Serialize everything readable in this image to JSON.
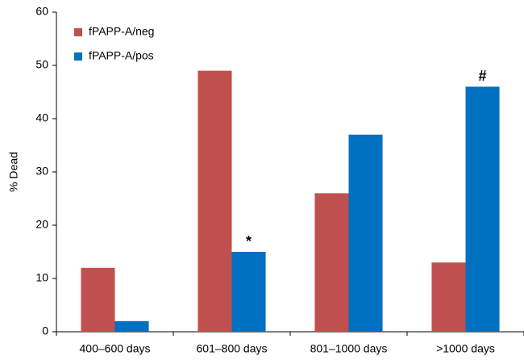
{
  "chart_data": {
    "type": "bar",
    "y_label": "% Dead",
    "categories": [
      "400–600 days",
      "601–800 days",
      "801–1000 days",
      ">1000 days"
    ],
    "series": [
      {
        "name": "fPAPP-A/neg",
        "color": "#c0504d",
        "values": [
          12,
          49,
          26,
          13
        ]
      },
      {
        "name": "fPAPP-A/pos",
        "color": "#0070c0",
        "values": [
          2,
          15,
          37,
          46
        ]
      }
    ],
    "ylim": [
      0,
      60
    ],
    "yticks": [
      0,
      10,
      20,
      30,
      40,
      50,
      60
    ],
    "grid": false,
    "legend": "top-left",
    "annotations": [
      {
        "text": "*",
        "category": "601–800 days",
        "series": "fPAPP-A/pos"
      },
      {
        "text": "#",
        "category": ">1000 days",
        "series": "fPAPP-A/pos"
      }
    ]
  }
}
